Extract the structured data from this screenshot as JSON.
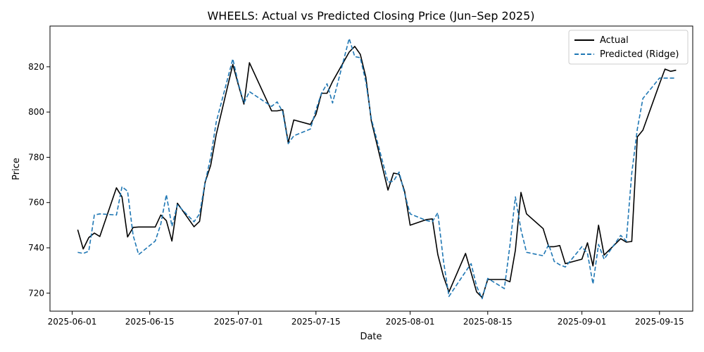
{
  "chart_data": {
    "type": "line",
    "title": "WHEELS: Actual vs Predicted Closing Price (Jun–Sep 2025)",
    "xlabel": "Date",
    "ylabel": "Price",
    "x_range": [
      "2025-05-28",
      "2025-09-21"
    ],
    "ylim": [
      712,
      838
    ],
    "x_ticks": [
      "2025-06-01",
      "2025-06-15",
      "2025-07-01",
      "2025-07-15",
      "2025-08-01",
      "2025-08-15",
      "2025-09-01",
      "2025-09-15"
    ],
    "y_ticks": [
      720,
      740,
      760,
      780,
      800,
      820
    ],
    "grid": false,
    "legend_position": "top-right",
    "dates": [
      "2025-06-02",
      "2025-06-03",
      "2025-06-04",
      "2025-06-05",
      "2025-06-06",
      "2025-06-09",
      "2025-06-10",
      "2025-06-11",
      "2025-06-12",
      "2025-06-13",
      "2025-06-16",
      "2025-06-17",
      "2025-06-18",
      "2025-06-19",
      "2025-06-20",
      "2025-06-23",
      "2025-06-24",
      "2025-06-25",
      "2025-06-26",
      "2025-06-27",
      "2025-06-30",
      "2025-07-01",
      "2025-07-02",
      "2025-07-03",
      "2025-07-07",
      "2025-07-08",
      "2025-07-09",
      "2025-07-10",
      "2025-07-11",
      "2025-07-14",
      "2025-07-15",
      "2025-07-16",
      "2025-07-17",
      "2025-07-18",
      "2025-07-21",
      "2025-07-22",
      "2025-07-23",
      "2025-07-24",
      "2025-07-25",
      "2025-07-28",
      "2025-07-29",
      "2025-07-30",
      "2025-07-31",
      "2025-08-01",
      "2025-08-04",
      "2025-08-05",
      "2025-08-06",
      "2025-08-07",
      "2025-08-08",
      "2025-08-11",
      "2025-08-12",
      "2025-08-13",
      "2025-08-14",
      "2025-08-15",
      "2025-08-18",
      "2025-08-19",
      "2025-08-20",
      "2025-08-21",
      "2025-08-22",
      "2025-08-25",
      "2025-08-26",
      "2025-08-27",
      "2025-08-28",
      "2025-08-29",
      "2025-09-01",
      "2025-09-02",
      "2025-09-03",
      "2025-09-04",
      "2025-09-05",
      "2025-09-08",
      "2025-09-09",
      "2025-09-10",
      "2025-09-11",
      "2025-09-12",
      "2025-09-15",
      "2025-09-16",
      "2025-09-17",
      "2025-09-18"
    ],
    "series": [
      {
        "name": "Actual",
        "color": "#000000",
        "style": "solid",
        "values": [
          748.0,
          739.5,
          744.5,
          746.5,
          745.0,
          766.5,
          762.5,
          744.8,
          749.0,
          749.2,
          749.2,
          754.5,
          752.0,
          743.0,
          759.7,
          749.3,
          751.7,
          769.0,
          776.5,
          790.0,
          821.0,
          812.0,
          803.5,
          821.8,
          800.5,
          800.5,
          801.0,
          786.5,
          796.5,
          794.5,
          799.0,
          808.3,
          808.3,
          813.5,
          826.5,
          829.0,
          825.5,
          815.5,
          796.0,
          765.5,
          773.0,
          772.5,
          765.0,
          750.0,
          752.5,
          752.8,
          737.0,
          727.5,
          720.5,
          737.5,
          729.0,
          720.5,
          718.0,
          726.0,
          726.0,
          725.0,
          739.0,
          764.5,
          755.0,
          748.5,
          740.5,
          740.5,
          741.0,
          733.0,
          735.0,
          742.2,
          732.0,
          750.0,
          736.8,
          744.0,
          742.5,
          742.8,
          789.0,
          792.0,
          812.5,
          819.0,
          818.0,
          818.5
        ]
      },
      {
        "name": "Predicted (Ridge)",
        "color": "#1f77b4",
        "style": "dashed",
        "values": [
          738.0,
          737.5,
          738.5,
          754.5,
          755.0,
          754.5,
          767.0,
          765.0,
          745.5,
          737.0,
          743.0,
          750.5,
          763.5,
          749.5,
          759.0,
          751.5,
          755.0,
          769.0,
          780.0,
          795.5,
          823.5,
          812.5,
          804.0,
          809.0,
          802.5,
          804.5,
          800.0,
          786.0,
          789.5,
          792.5,
          801.0,
          808.3,
          812.5,
          804.0,
          832.5,
          824.5,
          824.0,
          813.5,
          797.0,
          769.0,
          769.5,
          773.5,
          764.0,
          755.0,
          752.0,
          751.5,
          755.5,
          734.5,
          718.5,
          729.5,
          733.0,
          723.0,
          717.5,
          726.5,
          722.0,
          741.0,
          762.5,
          748.0,
          738.0,
          736.5,
          741.5,
          734.0,
          732.5,
          731.5,
          740.5,
          737.5,
          724.0,
          741.5,
          735.0,
          745.5,
          743.0,
          773.0,
          792.5,
          806.0,
          815.0,
          815.0,
          815.0,
          815.0
        ]
      }
    ]
  }
}
